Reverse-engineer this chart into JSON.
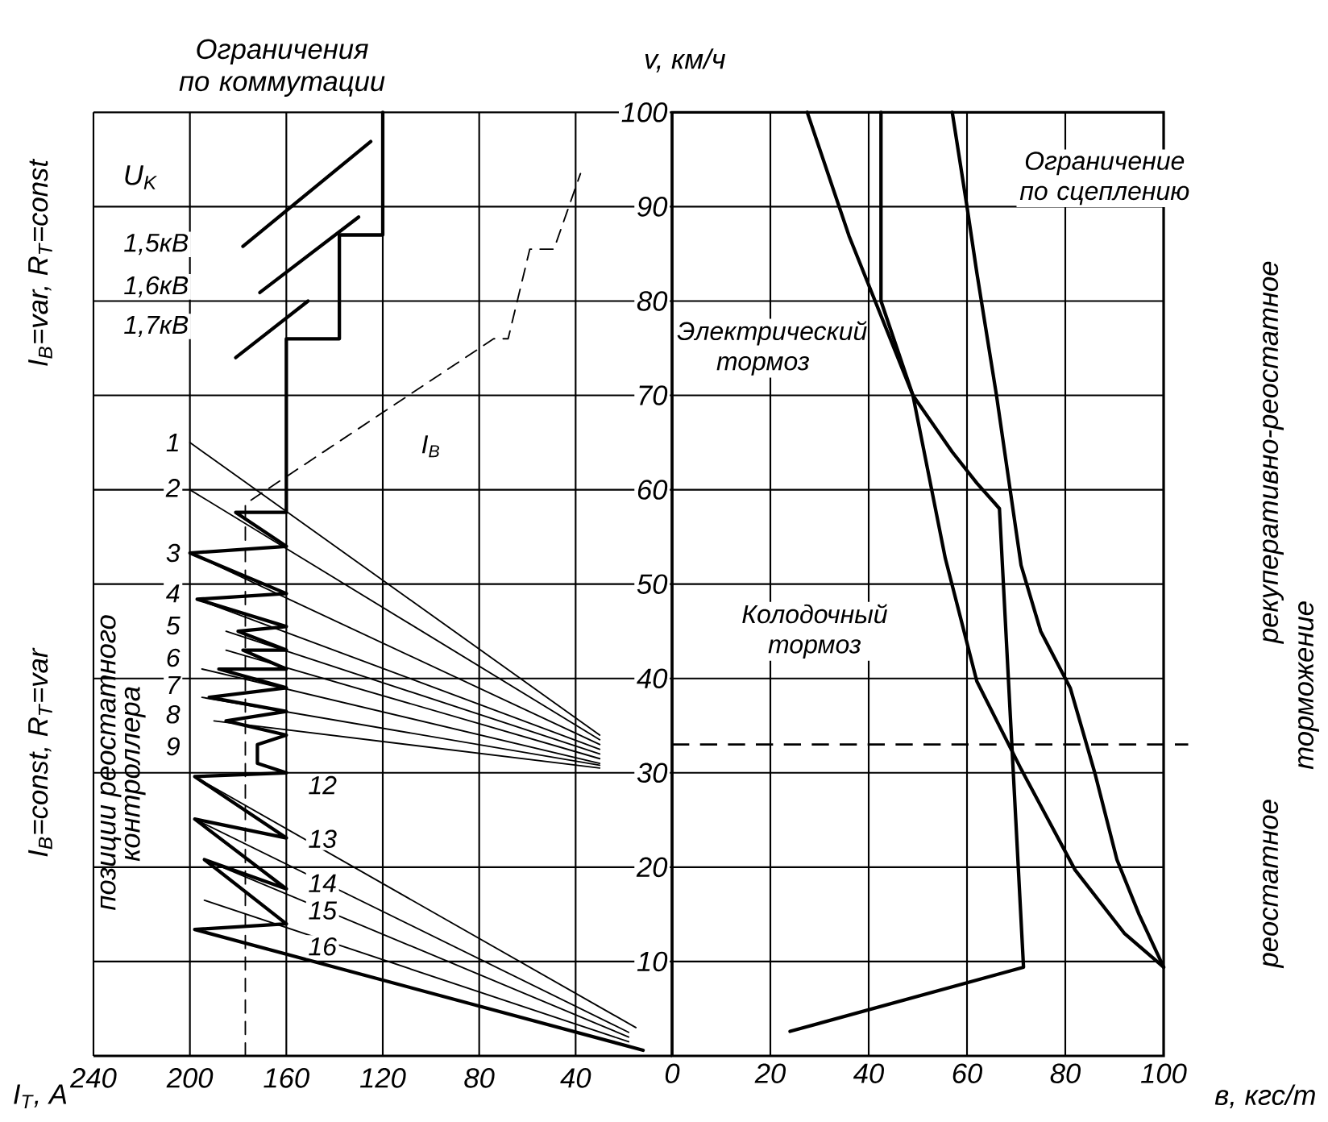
{
  "chart_data": [
    {
      "type": "line",
      "title": "Ограничения по коммутации",
      "xlabel": "I$_{Т}$, A",
      "ylabel": "v, км/ч",
      "color": "#000000",
      "xlim": [
        240,
        0
      ],
      "ylim": [
        0,
        100
      ],
      "xticks": [
        240,
        200,
        160,
        120,
        80,
        40
      ],
      "yticks": [
        10,
        20,
        30,
        40,
        50,
        60,
        70,
        80,
        90,
        100
      ],
      "grid": true,
      "series": [
        {
          "x": [
            120,
            120,
            138,
            138,
            160,
            160,
            181,
            160,
            200,
            160,
            197,
            160,
            180,
            160,
            178,
            160,
            188,
            160,
            192,
            160,
            185,
            160,
            172,
            172,
            160,
            198,
            160,
            198,
            160,
            194,
            160,
            198,
            12
          ],
          "values": [
            100,
            87,
            87,
            76,
            76,
            57.6,
            57.6,
            54,
            53.3,
            49,
            48.4,
            45.5,
            45,
            43,
            43,
            41,
            41,
            39,
            38,
            36.5,
            35.5,
            34,
            33,
            31,
            30,
            29.6,
            23.1,
            25.1,
            17.7,
            20.8,
            14,
            13.4,
            0.6
          ]
        },
        {
          "x": [
            177,
            177,
            74,
            68,
            59,
            49,
            38
          ],
          "values": [
            0,
            58.5,
            76,
            76,
            85.5,
            85.5,
            93.5
          ],
          "line_style": "dashed"
        },
        {
          "x": [
            178,
            125
          ],
          "values": [
            85.8,
            96.9
          ]
        },
        {
          "x": [
            171,
            130
          ],
          "values": [
            80.9,
            88.9
          ]
        },
        {
          "x": [
            181,
            151
          ],
          "values": [
            74,
            80
          ]
        },
        {
          "x": [
            200,
            30
          ],
          "values": [
            65,
            34
          ]
        },
        {
          "x": [
            200,
            30
          ],
          "values": [
            60,
            33.5
          ]
        },
        {
          "x": [
            200,
            30
          ],
          "values": [
            53.3,
            33
          ]
        },
        {
          "x": [
            197,
            30
          ],
          "values": [
            48.4,
            32.5
          ]
        },
        {
          "x": [
            185,
            30
          ],
          "values": [
            45,
            32
          ]
        },
        {
          "x": [
            185,
            30
          ],
          "values": [
            43,
            31.5
          ]
        },
        {
          "x": [
            195,
            30
          ],
          "values": [
            41,
            31
          ]
        },
        {
          "x": [
            195,
            30
          ],
          "values": [
            38,
            30.8
          ]
        },
        {
          "x": [
            190,
            30
          ],
          "values": [
            35.5,
            30.5
          ]
        },
        {
          "x": [
            198,
            15
          ],
          "values": [
            29.6,
            3
          ]
        },
        {
          "x": [
            198,
            18
          ],
          "values": [
            25.1,
            2.5
          ]
        },
        {
          "x": [
            194,
            18
          ],
          "values": [
            20.8,
            2
          ]
        },
        {
          "x": [
            194,
            18
          ],
          "values": [
            16.5,
            1.5
          ]
        }
      ],
      "annotations": [
        "U$_{K}$",
        "I$_{B}$=var, R$_{T}$=const",
        "I$_{B}$=const, R$_{T}$=var",
        "позиции реостатного",
        "контроллера",
        "1,5кВ",
        "1,6кВ",
        "1,7кВ",
        "I$_{B}$",
        "1",
        "2",
        "3",
        "4",
        "5",
        "6",
        "7",
        "8",
        "9",
        "12",
        "13",
        "14",
        "15",
        "16"
      ]
    },
    {
      "type": "line",
      "xlabel": "в, кгс/т",
      "color": "#000000",
      "xlim": [
        0,
        100
      ],
      "ylim": [
        0,
        100
      ],
      "xticks": [
        0,
        20,
        40,
        60,
        80,
        100
      ],
      "yticks": [
        10,
        20,
        30,
        40,
        50,
        60,
        70,
        80,
        90,
        100
      ],
      "tick_labels": "x",
      "grid": true,
      "ref_lines": [
        {
          "axis": "y",
          "value": 33,
          "line_style": "dashed"
        }
      ],
      "series": [
        {
          "name": "Электрический тормоз",
          "x": [
            27.5,
            36,
            49,
            57,
            62,
            65.6,
            66.6,
            71.5,
            24
          ],
          "values": [
            100,
            86.9,
            70,
            64,
            60.7,
            58.6,
            58,
            9.4,
            2.6
          ]
        },
        {
          "name": "Колодочный тормоз",
          "x": [
            42.5,
            42.5,
            49,
            55.6,
            62,
            71,
            82,
            92,
            100
          ],
          "values": [
            100,
            80,
            70,
            52.7,
            39.7,
            30.4,
            19.7,
            13,
            9.4
          ]
        },
        {
          "name": "Ограничение по сцеплению",
          "x": [
            57,
            60,
            62,
            66,
            71,
            75,
            81,
            86,
            90.5,
            95,
            100
          ],
          "values": [
            100,
            90,
            83,
            70,
            52,
            45,
            39,
            30,
            20.8,
            15,
            9.4
          ]
        }
      ],
      "annotations": [
        "рекуперативно-реостатное",
        "торможение",
        "реостатное"
      ]
    }
  ]
}
